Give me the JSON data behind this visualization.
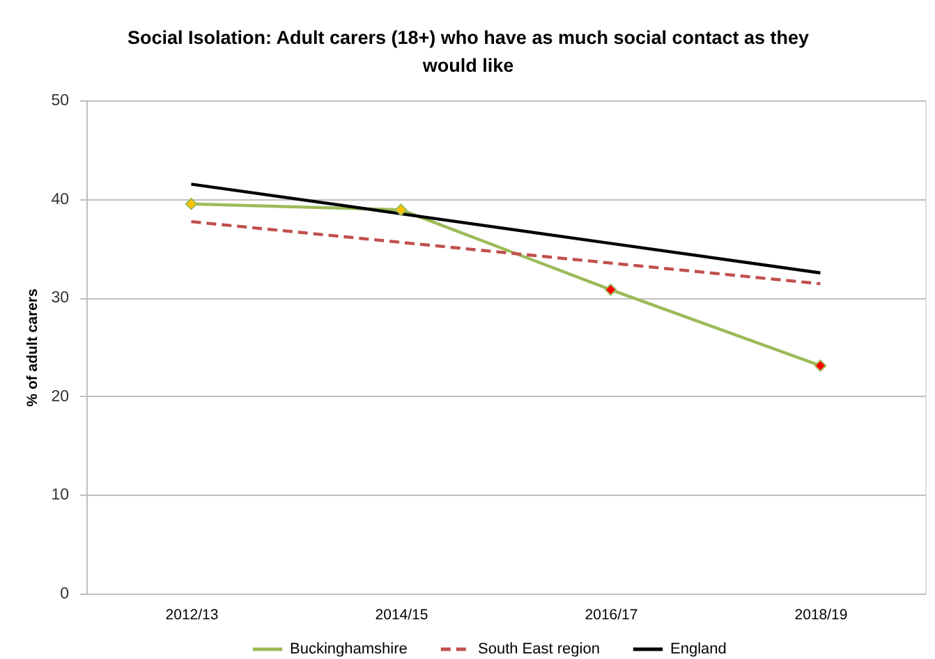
{
  "chart_data": {
    "type": "line",
    "title": "Social Isolation: Adult carers (18+) who have as much social contact as they would like",
    "ylabel": "% of adult carers",
    "categories": [
      "2012/13",
      "2014/15",
      "2016/17",
      "2018/19"
    ],
    "ylim": [
      0,
      50
    ],
    "yticks": [
      0,
      10,
      20,
      30,
      40,
      50
    ],
    "grid": "y",
    "legend": "bottom",
    "series": [
      {
        "name": "Buckinghamshire",
        "color": "#9bbb59",
        "colors": [
          "#ffc000",
          "#ffc000",
          "#ff0000",
          "#ff0000"
        ],
        "marker": "diamond",
        "line_style": "solid",
        "values": [
          39.5,
          38.9,
          30.8,
          23.1
        ]
      },
      {
        "name": "South East region",
        "color": "#c0504d",
        "marker": "none",
        "line_style": "dashed",
        "values": [
          37.7,
          35.6,
          33.5,
          31.4
        ]
      },
      {
        "name": "England",
        "color": "#000000",
        "marker": "none",
        "line_style": "solid",
        "values": [
          41.5,
          38.5,
          35.5,
          32.5
        ]
      }
    ]
  }
}
